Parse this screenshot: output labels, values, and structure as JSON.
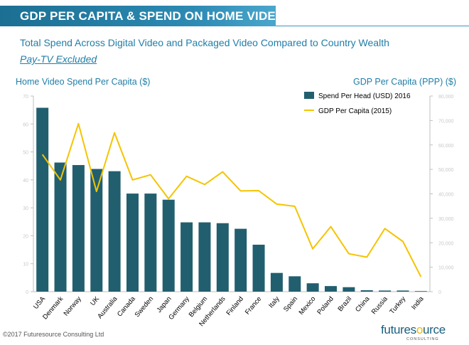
{
  "header": {
    "title": "GDP PER CAPITA & SPEND ON HOME VIDEO",
    "subtitle": "Total Spend Across Digital Video and Packaged Video Compared to Country Wealth",
    "note": "Pay-TV Excluded"
  },
  "footer": {
    "copyright": "©2017 Futuresource Consulting Ltd",
    "logo_text_1": "future",
    "logo_text_2": "s",
    "logo_text_3": "o",
    "logo_text_4": "urce",
    "logo_sub": "CONSULTING"
  },
  "colors": {
    "bar": "#215f6f",
    "line": "#f5c400",
    "title_bar": "#1f7ea8",
    "text_accent": "#1f7ea8"
  },
  "chart_data": {
    "type": "bar",
    "xlabel": "",
    "ylabel": "Home Video Spend Per Capita ($)",
    "y2label": "GDP Per Capita (PPP) ($)",
    "ylim": [
      0,
      70
    ],
    "y2lim": [
      0,
      80000
    ],
    "yticks": [
      "0",
      "10",
      "20",
      "30",
      "40",
      "50",
      "60",
      "70"
    ],
    "y2ticks": [
      "0",
      "10,000",
      "20,000",
      "30,000",
      "40,000",
      "50,000",
      "60,000",
      "70,000",
      "80,000"
    ],
    "legend_position": "top-right",
    "categories": [
      "USA",
      "Denmark",
      "Norway",
      "UK",
      "Australia",
      "Canada",
      "Sweden",
      "Japan",
      "Germany",
      "Belgium",
      "Netherlands",
      "Finland",
      "France",
      "Italy",
      "Spain",
      "Mexico",
      "Poland",
      "Brazil",
      "China",
      "Russia",
      "Turkey",
      "India"
    ],
    "series": [
      {
        "name": "Spend Per Head (USD) 2016",
        "type": "bar",
        "axis": "left",
        "values": [
          65.8,
          46.2,
          45.3,
          43.9,
          43.1,
          35.1,
          35.1,
          32.9,
          24.8,
          24.8,
          24.5,
          22.5,
          16.8,
          6.7,
          5.5,
          3.0,
          2.0,
          1.6,
          0.5,
          0.4,
          0.4,
          0.2
        ]
      },
      {
        "name": "GDP Per Capita (2015)",
        "type": "line",
        "axis": "right",
        "values": [
          56100,
          45700,
          68700,
          41000,
          65000,
          45700,
          47800,
          38000,
          47200,
          43800,
          49000,
          41200,
          41300,
          35800,
          34900,
          17500,
          26600,
          15500,
          14100,
          25800,
          20500,
          6100
        ]
      }
    ]
  }
}
